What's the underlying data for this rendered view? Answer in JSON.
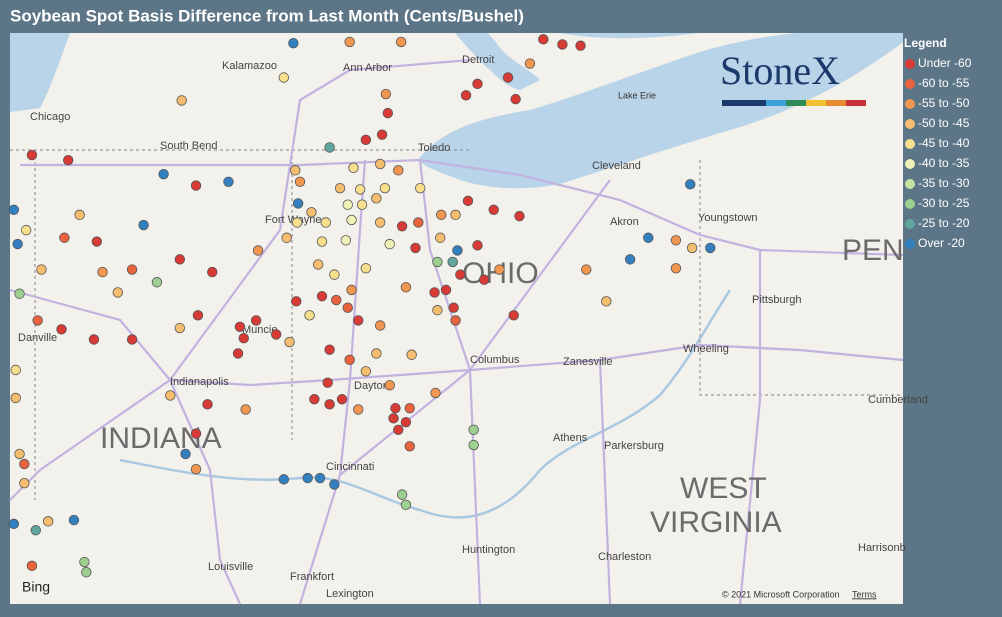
{
  "title": "Soybean Spot Basis Difference from Last Month (Cents/Bushel)",
  "logo": "StoneX",
  "legend": {
    "title": "Legend",
    "items": [
      {
        "label": "Under -60",
        "color": "#d83a36"
      },
      {
        "label": "-60 to -55",
        "color": "#e8633d"
      },
      {
        "label": "-55 to -50",
        "color": "#f19650"
      },
      {
        "label": "-50 to -45",
        "color": "#f5bd6e"
      },
      {
        "label": "-45 to -40",
        "color": "#f7df8e"
      },
      {
        "label": "-40 to -35",
        "color": "#f0f1b6"
      },
      {
        "label": "-35 to -30",
        "color": "#c8e2a2"
      },
      {
        "label": "-30 to -25",
        "color": "#9dcf91"
      },
      {
        "label": "-25 to -20",
        "color": "#5ea69f"
      },
      {
        "label": "Over -20",
        "color": "#3380c0"
      }
    ]
  },
  "map": {
    "xlim": [
      -88.05,
      -78.69
    ],
    "ylim": [
      38.05,
      42.54
    ],
    "labels": [
      "Chicago",
      "Kalamazoo",
      "Ann Arbor",
      "Detroit",
      "South Bend",
      "Toledo",
      "Cleveland",
      "Fort Wayne",
      "Akron",
      "Youngstown",
      "OHIO",
      "PEN",
      "Pittsburgh",
      "Muncie",
      "Danville",
      "Indianapolis",
      "Columbus",
      "Zanesville",
      "Wheeling",
      "Dayton",
      "INDIANA",
      "Athens",
      "Parkersburg",
      "Cincinnati",
      "WEST",
      "VIRGINIA",
      "Cumberland",
      "Huntington",
      "Charleston",
      "Harrisonb",
      "Louisville",
      "Frankfort",
      "Lexington",
      "Lake Erie"
    ],
    "attribution": [
      "Bing",
      "© 2021 Microsoft Corporation",
      "Terms"
    ],
    "points": [
      [
        -82.46,
        42.49,
        0
      ],
      [
        -82.26,
        42.45,
        0
      ],
      [
        -82.07,
        42.44,
        0
      ],
      [
        -82.6,
        42.3,
        2
      ],
      [
        -82.83,
        42.19,
        0
      ],
      [
        -83.15,
        42.14,
        0
      ],
      [
        -83.27,
        42.05,
        0
      ],
      [
        -82.75,
        42.02,
        0
      ],
      [
        -84.49,
        42.47,
        2
      ],
      [
        -85.08,
        42.46,
        9
      ],
      [
        -83.95,
        42.47,
        2
      ],
      [
        -85.18,
        42.19,
        4
      ],
      [
        -86.25,
        42.01,
        3
      ],
      [
        -84.11,
        42.06,
        2
      ],
      [
        -84.09,
        41.91,
        0
      ],
      [
        -84.15,
        41.74,
        0
      ],
      [
        -84.32,
        41.7,
        0
      ],
      [
        -84.7,
        41.64,
        8
      ],
      [
        -87.82,
        41.58,
        0
      ],
      [
        -87.44,
        41.54,
        0
      ],
      [
        -86.44,
        41.43,
        9
      ],
      [
        -86.1,
        41.34,
        0
      ],
      [
        -85.76,
        41.37,
        9
      ],
      [
        -85.06,
        41.46,
        3
      ],
      [
        -84.45,
        41.48,
        4
      ],
      [
        -84.17,
        41.51,
        3
      ],
      [
        -83.98,
        41.46,
        2
      ],
      [
        -83.75,
        41.32,
        4
      ],
      [
        -85.01,
        41.37,
        2
      ],
      [
        -84.59,
        41.32,
        3
      ],
      [
        -84.38,
        41.31,
        4
      ],
      [
        -84.51,
        41.19,
        5
      ],
      [
        -84.21,
        41.24,
        3
      ],
      [
        -85.03,
        41.2,
        9
      ],
      [
        -84.74,
        41.05,
        4
      ],
      [
        -84.47,
        41.07,
        5
      ],
      [
        -84.17,
        41.05,
        3
      ],
      [
        -83.94,
        41.02,
        0
      ],
      [
        -83.77,
        41.05,
        1
      ],
      [
        -83.53,
        41.11,
        2
      ],
      [
        -83.25,
        41.22,
        0
      ],
      [
        -82.98,
        41.15,
        0
      ],
      [
        -82.71,
        41.1,
        0
      ],
      [
        -85.04,
        41.05,
        4
      ],
      [
        -85.15,
        40.93,
        3
      ],
      [
        -84.78,
        40.9,
        4
      ],
      [
        -84.53,
        40.91,
        5
      ],
      [
        -84.07,
        40.88,
        5
      ],
      [
        -83.8,
        40.85,
        0
      ],
      [
        -83.54,
        40.93,
        3
      ],
      [
        -83.15,
        40.87,
        0
      ],
      [
        -83.36,
        40.83,
        9
      ],
      [
        -83.57,
        40.74,
        7
      ],
      [
        -83.41,
        40.74,
        8
      ],
      [
        -83.33,
        40.64,
        0
      ],
      [
        -83.08,
        40.6,
        0
      ],
      [
        -82.01,
        40.68,
        2
      ],
      [
        -85.45,
        40.83,
        2
      ],
      [
        -85.93,
        40.66,
        0
      ],
      [
        -86.27,
        40.76,
        0
      ],
      [
        -86.65,
        41.03,
        9
      ],
      [
        -87.14,
        40.9,
        0
      ],
      [
        -87.32,
        41.11,
        3
      ],
      [
        -87.48,
        40.93,
        1
      ],
      [
        -87.97,
        40.88,
        9
      ],
      [
        -87.72,
        40.68,
        3
      ],
      [
        -87.08,
        40.66,
        2
      ],
      [
        -86.77,
        40.68,
        1
      ],
      [
        -86.51,
        40.58,
        7
      ],
      [
        -86.92,
        40.5,
        3
      ],
      [
        -87.95,
        40.49,
        7
      ],
      [
        -84.82,
        40.72,
        3
      ],
      [
        -84.65,
        40.64,
        4
      ],
      [
        -84.32,
        40.69,
        4
      ],
      [
        -84.47,
        40.52,
        2
      ],
      [
        -84.63,
        40.44,
        1
      ],
      [
        -85.05,
        40.43,
        0
      ],
      [
        -84.91,
        40.32,
        4
      ],
      [
        -84.4,
        40.28,
        0
      ],
      [
        -84.17,
        40.24,
        2
      ],
      [
        -83.9,
        40.54,
        2
      ],
      [
        -83.6,
        40.5,
        0
      ],
      [
        -83.4,
        40.38,
        0
      ],
      [
        -83.57,
        40.36,
        3
      ],
      [
        -82.77,
        40.32,
        0
      ],
      [
        -81.8,
        40.43,
        3
      ],
      [
        -86.08,
        40.32,
        0
      ],
      [
        -86.27,
        40.22,
        3
      ],
      [
        -85.64,
        40.23,
        0
      ],
      [
        -85.26,
        40.17,
        0
      ],
      [
        -87.76,
        40.28,
        1
      ],
      [
        -87.51,
        40.21,
        0
      ],
      [
        -87.17,
        40.13,
        0
      ],
      [
        -86.77,
        40.13,
        0
      ],
      [
        -85.66,
        40.02,
        0
      ],
      [
        -84.7,
        40.05,
        0
      ],
      [
        -84.49,
        39.97,
        1
      ],
      [
        -84.21,
        40.02,
        3
      ],
      [
        -83.84,
        40.01,
        3
      ],
      [
        -84.32,
        39.88,
        3
      ],
      [
        -84.72,
        39.79,
        0
      ],
      [
        -84.07,
        39.77,
        2
      ],
      [
        -84.86,
        39.66,
        0
      ],
      [
        -84.7,
        39.62,
        0
      ],
      [
        -84.01,
        39.59,
        0
      ],
      [
        -83.86,
        39.59,
        1
      ],
      [
        -83.98,
        39.42,
        0
      ],
      [
        -83.59,
        39.71,
        2
      ],
      [
        -84.4,
        39.58,
        2
      ],
      [
        -85.58,
        39.58,
        2
      ],
      [
        -85.98,
        39.62,
        0
      ],
      [
        -86.37,
        39.69,
        3
      ],
      [
        -87.99,
        39.67,
        3
      ],
      [
        -86.1,
        39.39,
        0
      ],
      [
        -86.21,
        39.23,
        9
      ],
      [
        -86.1,
        39.11,
        2
      ],
      [
        -83.19,
        39.42,
        7
      ],
      [
        -83.19,
        39.3,
        7
      ],
      [
        -83.86,
        39.29,
        1
      ],
      [
        -85.18,
        39.03,
        9
      ],
      [
        -84.93,
        39.04,
        9
      ],
      [
        -84.8,
        39.04,
        9
      ],
      [
        -84.65,
        38.99,
        9
      ],
      [
        -83.94,
        38.91,
        7
      ],
      [
        -83.9,
        38.83,
        7
      ],
      [
        -87.95,
        39.23,
        3
      ],
      [
        -87.9,
        39.15,
        1
      ],
      [
        -87.9,
        39.0,
        3
      ],
      [
        -88.01,
        38.68,
        9
      ],
      [
        -87.78,
        38.63,
        8
      ],
      [
        -87.65,
        38.7,
        3
      ],
      [
        -87.38,
        38.71,
        9
      ],
      [
        -87.82,
        38.35,
        1
      ],
      [
        -87.27,
        38.38,
        7
      ],
      [
        -87.25,
        38.3,
        7
      ],
      [
        -80.92,
        41.35,
        9
      ],
      [
        -81.36,
        40.93,
        9
      ],
      [
        -81.07,
        40.91,
        2
      ],
      [
        -80.9,
        40.85,
        3
      ],
      [
        -80.71,
        40.85,
        9
      ],
      [
        -81.55,
        40.76,
        9
      ],
      [
        -81.07,
        40.69,
        2
      ],
      [
        -88.01,
        41.15,
        9
      ],
      [
        -87.88,
        40.99,
        4
      ],
      [
        -87.99,
        39.89,
        4
      ],
      [
        -84.36,
        41.19,
        4
      ],
      [
        -84.12,
        41.32,
        4
      ],
      [
        -84.89,
        41.13,
        3
      ],
      [
        -83.38,
        41.11,
        3
      ],
      [
        -82.92,
        40.68,
        2
      ],
      [
        -84.78,
        40.47,
        0
      ],
      [
        -84.51,
        40.38,
        1
      ],
      [
        -83.48,
        40.52,
        0
      ],
      [
        -83.38,
        40.28,
        1
      ],
      [
        -85.47,
        40.28,
        0
      ],
      [
        -85.6,
        40.14,
        0
      ],
      [
        -85.12,
        40.11,
        3
      ],
      [
        -84.57,
        39.66,
        0
      ],
      [
        -84.03,
        39.51,
        0
      ],
      [
        -83.9,
        39.48,
        0
      ]
    ]
  }
}
